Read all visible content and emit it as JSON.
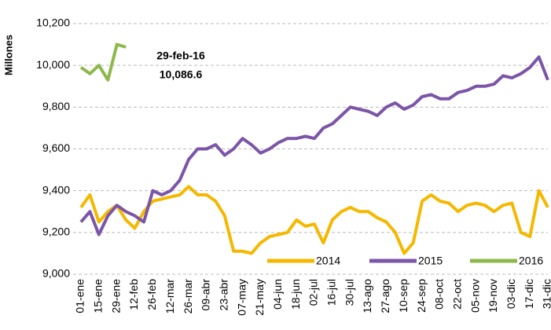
{
  "chart_data": {
    "type": "line",
    "y_label": "Millones",
    "annotation": {
      "date": "29-feb-16",
      "value": "10,086.6"
    },
    "categories": [
      "01-ene",
      null,
      "15-ene",
      null,
      "29-ene",
      null,
      "12-feb",
      null,
      "26-feb",
      null,
      "12-mar",
      null,
      "26-mar",
      null,
      "09-abr",
      null,
      "23-abr",
      null,
      "07-may",
      null,
      "21-may",
      null,
      "04-jun",
      null,
      "18-jun",
      null,
      "02-jul",
      null,
      "16-jul",
      null,
      "30-jul",
      null,
      "13-ago",
      null,
      "27-ago",
      null,
      "10-sep",
      null,
      "24-sep",
      null,
      "08-oct",
      null,
      "22-oct",
      null,
      "05-nov",
      null,
      "19-nov",
      null,
      "03-dic",
      null,
      "17-dic",
      null,
      "31-dic"
    ],
    "series": [
      {
        "name": "2014",
        "color": "#f5b800",
        "values": [
          9320,
          9380,
          9250,
          9300,
          9330,
          9260,
          9220,
          9300,
          9350,
          9360,
          9370,
          9380,
          9420,
          9380,
          9380,
          9350,
          9280,
          9110,
          9110,
          9100,
          9150,
          9180,
          9190,
          9200,
          9260,
          9230,
          9240,
          9150,
          9260,
          9300,
          9320,
          9300,
          9300,
          9270,
          9250,
          9200,
          9100,
          9150,
          9350,
          9380,
          9350,
          9340,
          9300,
          9330,
          9340,
          9330,
          9300,
          9330,
          9340,
          9200,
          9180,
          9400,
          9320
        ]
      },
      {
        "name": "2015",
        "color": "#7b55a8",
        "values": [
          9250,
          9300,
          9190,
          9280,
          9330,
          9300,
          9280,
          9250,
          9400,
          9380,
          9400,
          9450,
          9550,
          9600,
          9600,
          9620,
          9570,
          9600,
          9650,
          9620,
          9580,
          9600,
          9630,
          9650,
          9650,
          9660,
          9650,
          9700,
          9720,
          9760,
          9800,
          9790,
          9780,
          9760,
          9800,
          9820,
          9790,
          9810,
          9850,
          9860,
          9840,
          9840,
          9870,
          9880,
          9900,
          9900,
          9910,
          9950,
          9940,
          9960,
          9990,
          10040,
          9930
        ]
      },
      {
        "name": "2016",
        "color": "#8db84a",
        "values": [
          9990,
          9960,
          10000,
          9930,
          10100,
          10087,
          null,
          null,
          null,
          null,
          null,
          null,
          null,
          null,
          null,
          null,
          null,
          null,
          null,
          null,
          null,
          null,
          null,
          null,
          null,
          null,
          null,
          null,
          null,
          null,
          null,
          null,
          null,
          null,
          null,
          null,
          null,
          null,
          null,
          null,
          null,
          null,
          null,
          null,
          null,
          null,
          null,
          null,
          null,
          null,
          null,
          null,
          null
        ]
      }
    ],
    "ylim": [
      9000,
      10200
    ],
    "yticks": [
      {
        "value": 9000,
        "label": "9,000"
      },
      {
        "value": 9200,
        "label": "9,200"
      },
      {
        "value": 9400,
        "label": "9,400"
      },
      {
        "value": 9600,
        "label": "9,600"
      },
      {
        "value": 9800,
        "label": "9,800"
      },
      {
        "value": 10000,
        "label": "10,000"
      },
      {
        "value": 10200,
        "label": "10,200"
      }
    ],
    "grid": true
  }
}
